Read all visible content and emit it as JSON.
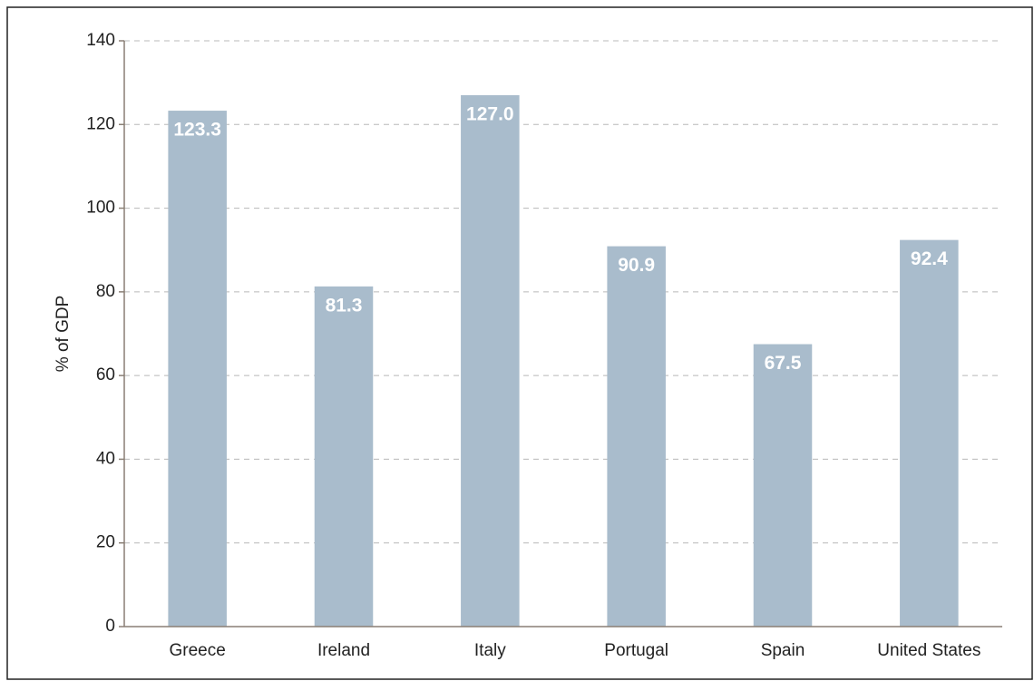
{
  "chart_data": {
    "type": "bar",
    "y_label": "% of GDP",
    "categories": [
      "Greece",
      "Ireland",
      "Italy",
      "Portugal",
      "Spain",
      "United States"
    ],
    "values": [
      123.3,
      81.3,
      127.0,
      90.9,
      67.5,
      92.4
    ],
    "value_labels": [
      "123.3",
      "81.3",
      "127.0",
      "90.9",
      "67.5",
      "92.4"
    ],
    "color": "#a9bccc",
    "ylim": [
      0,
      140
    ],
    "yticks": [
      0,
      20,
      40,
      60,
      80,
      100,
      120,
      140
    ],
    "grid": true
  }
}
